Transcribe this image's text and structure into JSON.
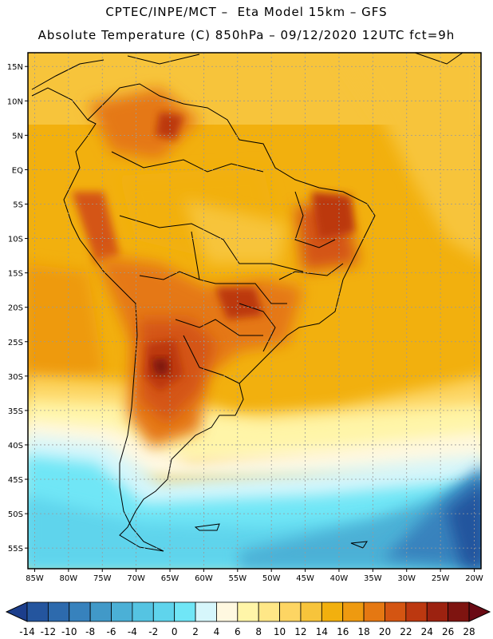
{
  "header": {
    "line1": "CPTEC/INPE/MCT –  Eta Model 15km – GFS",
    "line2": "Absolute Temperature (C) 850hPa – 09/12/2020 12UTC fct=9h"
  },
  "axes": {
    "lat_labels": [
      "15N",
      "10N",
      "5N",
      "EQ",
      "5S",
      "10S",
      "15S",
      "20S",
      "25S",
      "30S",
      "35S",
      "40S",
      "45S",
      "50S",
      "55S"
    ],
    "lat_values": [
      15,
      10,
      5,
      0,
      -5,
      -10,
      -15,
      -20,
      -25,
      -30,
      -35,
      -40,
      -45,
      -50,
      -55
    ],
    "lon_labels": [
      "85W",
      "80W",
      "75W",
      "70W",
      "65W",
      "60W",
      "55W",
      "50W",
      "45W",
      "40W",
      "35W",
      "30W",
      "25W",
      "20W"
    ],
    "lon_values": [
      -85,
      -80,
      -75,
      -70,
      -65,
      -60,
      -55,
      -50,
      -45,
      -40,
      -35,
      -30,
      -25,
      -20
    ],
    "lon_range": [
      -86,
      -19
    ],
    "lat_range": [
      -58,
      17
    ]
  },
  "colorbar": {
    "labels": [
      "-14",
      "-12",
      "-10",
      "-8",
      "-6",
      "-4",
      "-2",
      "0",
      "2",
      "4",
      "6",
      "8",
      "10",
      "12",
      "14",
      "16",
      "18",
      "20",
      "22",
      "24",
      "26",
      "28"
    ],
    "colors": [
      "#1c3e8c",
      "#24559e",
      "#2d6aad",
      "#3782bd",
      "#4199c8",
      "#4bb0d6",
      "#55c4e2",
      "#5fd4ec",
      "#70e6f6",
      "#d6f6fb",
      "#fff8e0",
      "#fff5a8",
      "#ffe787",
      "#fdd563",
      "#f7c43b",
      "#f2b00e",
      "#ee9a10",
      "#e57812",
      "#d45512",
      "#bc3810",
      "#9c2210",
      "#7e1410",
      "#6a0a14"
    ]
  }
}
